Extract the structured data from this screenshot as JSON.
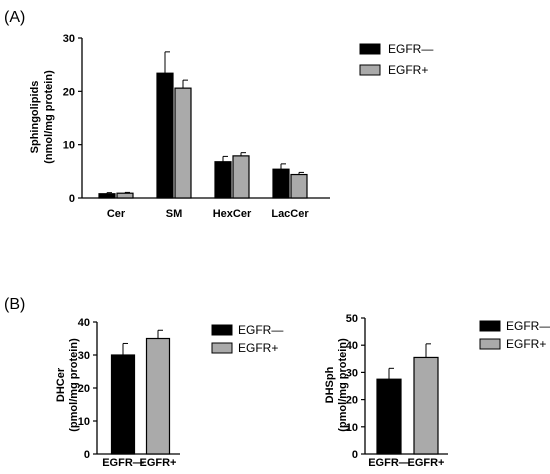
{
  "panels": [
    {
      "label": "(A)",
      "ylabel_lines": [
        "Sphingolipids",
        "(nmol/mg protein)"
      ],
      "legend": [
        "EGFR—",
        "EGFR+"
      ],
      "colors": [
        "#000000",
        "#aaaaaa"
      ]
    },
    {
      "label": "(B)",
      "ylabel_lines": [
        "DHCer",
        "(pmol/mg protein)"
      ],
      "legend": [
        "EGFR—",
        "EGFR+"
      ],
      "colors": [
        "#000000",
        "#aaaaaa"
      ]
    },
    {
      "label": "",
      "ylabel_lines": [
        "DHSph",
        "(pmol/mg protein)"
      ],
      "legend": [
        "EGFR—",
        "EGFR+"
      ],
      "colors": [
        "#000000",
        "#aaaaaa"
      ]
    }
  ],
  "chart_data": [
    {
      "type": "bar",
      "title": "",
      "categories": [
        "Cer",
        "SM",
        "HexCer",
        "LacCer"
      ],
      "series": [
        {
          "name": "EGFR—",
          "values": [
            0.8,
            23.4,
            6.8,
            5.4
          ],
          "errors": [
            0.2,
            4.0,
            1.0,
            1.0
          ]
        },
        {
          "name": "EGFR+",
          "values": [
            0.9,
            20.6,
            7.9,
            4.4
          ],
          "errors": [
            0.15,
            1.5,
            0.6,
            0.4
          ]
        }
      ],
      "ylim": [
        0,
        30
      ],
      "yticks": [
        0,
        10,
        20,
        30
      ],
      "grid": false,
      "legend_position": "top-right"
    },
    {
      "type": "bar",
      "title": "",
      "categories": [
        "EGFR—",
        "EGFR+"
      ],
      "series": [
        {
          "name": "EGFR—",
          "values": [
            30,
            null
          ],
          "errors": [
            3.5,
            null
          ]
        },
        {
          "name": "EGFR+",
          "values": [
            null,
            35
          ],
          "errors": [
            null,
            2.5
          ]
        }
      ],
      "ylim": [
        0,
        40
      ],
      "yticks": [
        0,
        10,
        20,
        30,
        40
      ],
      "grid": false,
      "legend_position": "right"
    },
    {
      "type": "bar",
      "title": "",
      "categories": [
        "EGFR—",
        "EGFR+"
      ],
      "series": [
        {
          "name": "EGFR—",
          "values": [
            27.5,
            null
          ],
          "errors": [
            4,
            null
          ]
        },
        {
          "name": "EGFR+",
          "values": [
            null,
            35.5
          ],
          "errors": [
            null,
            5
          ]
        }
      ],
      "ylim": [
        0,
        50
      ],
      "yticks": [
        0,
        10,
        20,
        30,
        40,
        50
      ],
      "grid": false,
      "legend_position": "right"
    }
  ]
}
